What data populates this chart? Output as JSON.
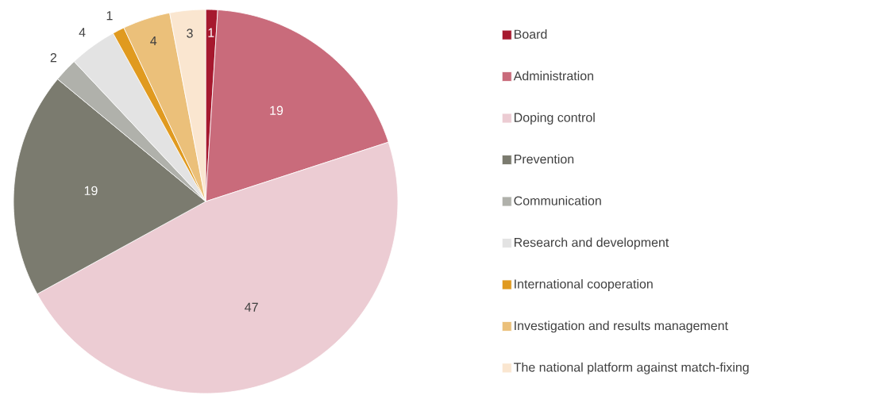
{
  "chart_data": {
    "type": "pie",
    "categories": [
      "Board",
      "Administration",
      "Doping control",
      "Prevention",
      "Communication",
      "Research and development",
      "International cooperation",
      "Investigation and results management",
      "The national platform against match-fixing"
    ],
    "values": [
      1,
      19,
      47,
      19,
      2,
      4,
      1,
      4,
      3
    ],
    "colors": [
      "#a6192e",
      "#c96b7b",
      "#ecccd3",
      "#7b7b6f",
      "#b0b1ab",
      "#e3e3e3",
      "#e09a1f",
      "#ebc07a",
      "#fae6d0"
    ],
    "data_labels": true,
    "legend": "right"
  }
}
